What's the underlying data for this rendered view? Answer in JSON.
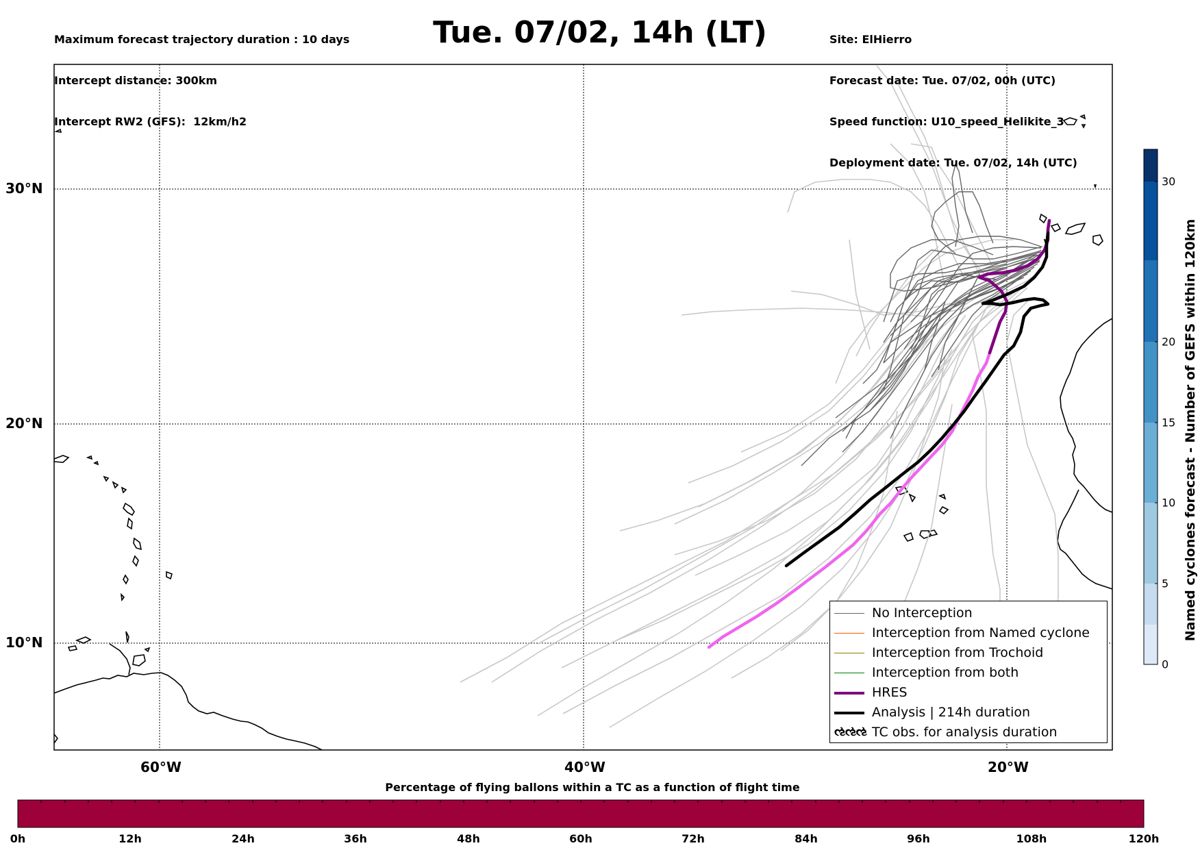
{
  "header": {
    "left_lines": [
      "Maximum forecast trajectory duration : 10 days",
      "Intercept distance: 300km",
      "Intercept RW2 (GFS):  12km/h2"
    ],
    "title": "Tue. 07/02, 14h (LT)",
    "right_lines": [
      "Site: ElHierro",
      "Forecast date: Tue. 07/02, 00h (UTC)",
      "Speed function: U10_speed_Helikite_3",
      "Deployment date: Tue. 07/02, 14h (UTC)"
    ]
  },
  "map": {
    "lon_range": [
      -70,
      20
    ],
    "lat_range": [
      5,
      34.5
    ],
    "lat_labels": [
      "30°N",
      "20°N",
      "10°N"
    ],
    "lon_labels": [
      "60°W",
      "40°W",
      "20°W"
    ],
    "gridlines": "dotted",
    "colors": {
      "no_interception": "#666666",
      "ensemble_light": "#c8c8c8",
      "named_cyclone": "#ff5500",
      "trochoid": "#808000",
      "both": "#008000",
      "hres": "#800080",
      "hres_tail": "#ee66ee",
      "analysis": "#000000"
    }
  },
  "legend": {
    "placement": "lower-right",
    "items": [
      {
        "label": "No Interception",
        "color": "#666666"
      },
      {
        "label": "Interception from Named cyclone",
        "color": "#ff5500"
      },
      {
        "label": "Interception from Trochoid",
        "color": "#808000"
      },
      {
        "label": "Interception from both",
        "color": "#008000"
      },
      {
        "label": "HRES",
        "color": "#800080"
      },
      {
        "label": "Analysis | 214h duration",
        "color": "#000000"
      }
    ],
    "tc_glyph": "ઌઌઌ",
    "tc_label": "TC obs. for analysis duration"
  },
  "colorbar": {
    "label": "Named cyclones forecast - Number of GEFS within 120km",
    "range": [
      0,
      32
    ],
    "ticks": [
      "0",
      "5",
      "10",
      "15",
      "20",
      "30"
    ],
    "tick_values": [
      0,
      5,
      10,
      15,
      20,
      30
    ],
    "colors": [
      "#dde9f6",
      "#c6dbef",
      "#9ecae1",
      "#6baed6",
      "#4292c6",
      "#2171b5",
      "#08519c",
      "#08306b"
    ]
  },
  "bottom_bar": {
    "title": "Percentage of flying ballons within a TC as a function of flight time",
    "fill_color": "#9e003a",
    "ticks": [
      "0h",
      "12h",
      "24h",
      "36h",
      "48h",
      "60h",
      "72h",
      "84h",
      "96h",
      "108h",
      "120h"
    ]
  }
}
